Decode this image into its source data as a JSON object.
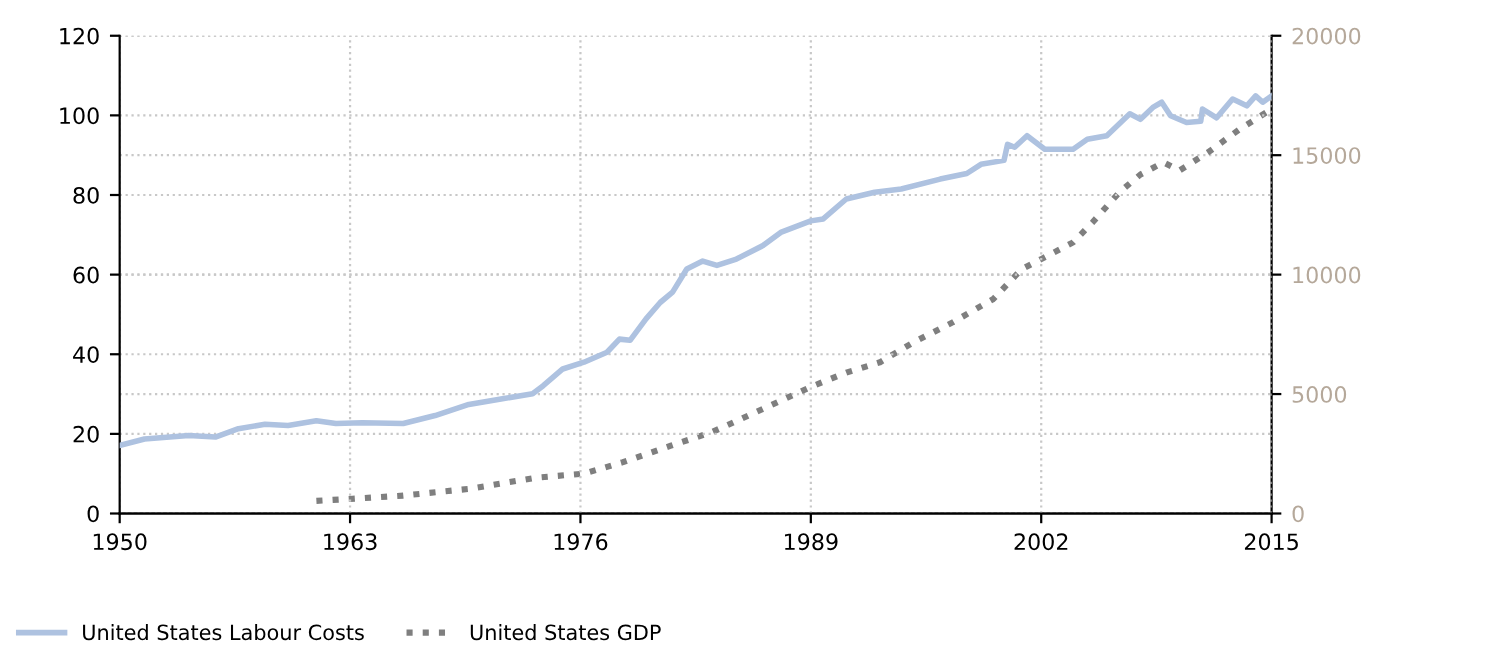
{
  "chart_data": {
    "type": "line",
    "xlim": [
      1950,
      2015
    ],
    "xticks": [
      1950,
      1963,
      1976,
      1989,
      2002,
      2015
    ],
    "ylim": [
      0,
      120
    ],
    "yticks": [
      0,
      20,
      40,
      60,
      80,
      100,
      120
    ],
    "y2lim": [
      0,
      20000
    ],
    "y2ticks": [
      0,
      5000,
      10000,
      15000,
      20000
    ],
    "grid": true,
    "legend": "bottom left",
    "series": [
      {
        "name": "United States Labour Costs",
        "color": "#aec2e0",
        "line_style": "solid",
        "x": [
          1950,
          1951.4,
          1953.9,
          1955.4,
          1956.7,
          1958.2,
          1959.5,
          1961.1,
          1962.2,
          1963.7,
          1966,
          1967.8,
          1969.7,
          1971.6,
          1973.3,
          1973.9,
          1975,
          1976.2,
          1977.5,
          1978.2,
          1978.8,
          1979.7,
          1980.5,
          1981.2,
          1982,
          1982.9,
          1983.7,
          1984.8,
          1986.3,
          1987.3,
          1989,
          1989.7,
          1991,
          1992.6,
          1994.1,
          1996.3,
          1997.8,
          1998.6,
          1999.9,
          2000.1,
          2000.5,
          2001.2,
          2002.2,
          2003.8,
          2004.6,
          2005.7,
          2007,
          2007.6,
          2008.3,
          2008.8,
          2009.3,
          2010.2,
          2011,
          2011.1,
          2011.9,
          2012.8,
          2013.6,
          2014.1,
          2014.5,
          2015
        ],
        "values": [
          17.1,
          18.7,
          19.6,
          19.2,
          21.3,
          22.4,
          22.1,
          23.3,
          22.6,
          22.8,
          22.6,
          24.6,
          27.4,
          28.8,
          30.1,
          32.1,
          36.3,
          38,
          40.5,
          43.8,
          43.5,
          48.9,
          53,
          55.6,
          61.4,
          63.4,
          62.3,
          63.9,
          67.3,
          70.6,
          73.5,
          74,
          79,
          80.7,
          81.5,
          84,
          85.4,
          87.7,
          88.7,
          92.7,
          92,
          94.9,
          91.5,
          91.5,
          94,
          94.9,
          100.4,
          99,
          102,
          103.3,
          99.9,
          98.2,
          98.5,
          101.6,
          99.4,
          104.1,
          102.4,
          104.9,
          103.3,
          104.9
        ]
      },
      {
        "name": "United States GDP",
        "color": "#7f7f7f",
        "line_style": "dotted",
        "axis": "y2",
        "x": [
          1961.1,
          1963,
          1966,
          1969.7,
          1973.5,
          1976.2,
          1978.4,
          1981.1,
          1983.4,
          1986.3,
          1989,
          1991,
          1992.9,
          1994.8,
          1997,
          1999.3,
          2000.9,
          2002,
          2003.8,
          2004.9,
          2006.4,
          2007.6,
          2008.9,
          2009.8,
          2011.4,
          2013.2,
          2014.7
        ],
        "values": [
          530,
          610,
          750,
          1030,
          1500,
          1670,
          2150,
          2840,
          3400,
          4380,
          5300,
          5900,
          6330,
          7170,
          8000,
          8980,
          10230,
          10650,
          11350,
          12190,
          13440,
          14190,
          14700,
          14360,
          15110,
          16090,
          16790
        ]
      }
    ]
  }
}
